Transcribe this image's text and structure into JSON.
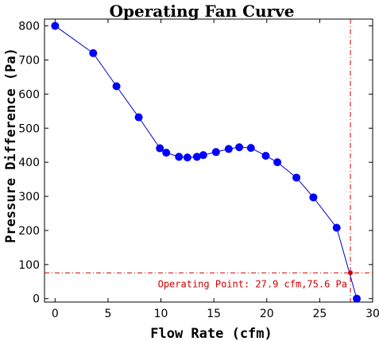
{
  "chart_data": {
    "type": "line",
    "title": "Operating Fan Curve",
    "xlabel": "Flow Rate (cfm)",
    "ylabel": "Pressure Difference (Pa)",
    "xlim": [
      -1,
      30
    ],
    "ylim": [
      -10,
      820
    ],
    "xticks": [
      0,
      5,
      10,
      15,
      20,
      25,
      30
    ],
    "yticks": [
      0,
      100,
      200,
      300,
      400,
      500,
      600,
      700,
      800
    ],
    "grid": false,
    "series": [
      {
        "marker_color": "#0000ff",
        "line_color": "#0000cc",
        "x": [
          0,
          3.6,
          5.8,
          7.9,
          9.9,
          10.5,
          11.7,
          12.5,
          13.4,
          14.0,
          15.2,
          16.4,
          17.4,
          18.5,
          19.9,
          21.0,
          22.8,
          24.4,
          26.6,
          28.5
        ],
        "y": [
          800,
          720,
          623,
          532,
          441,
          428,
          416,
          414,
          416,
          421,
          430,
          439,
          444,
          442,
          419,
          400,
          355,
          297,
          208,
          0
        ]
      }
    ],
    "operating_point": {
      "x": 27.9,
      "y": 75.6,
      "label": "Operating Point: 27.9 cfm,75.6 Pa",
      "line_color": "#cc0000",
      "marker_color": "#cc0000"
    }
  }
}
